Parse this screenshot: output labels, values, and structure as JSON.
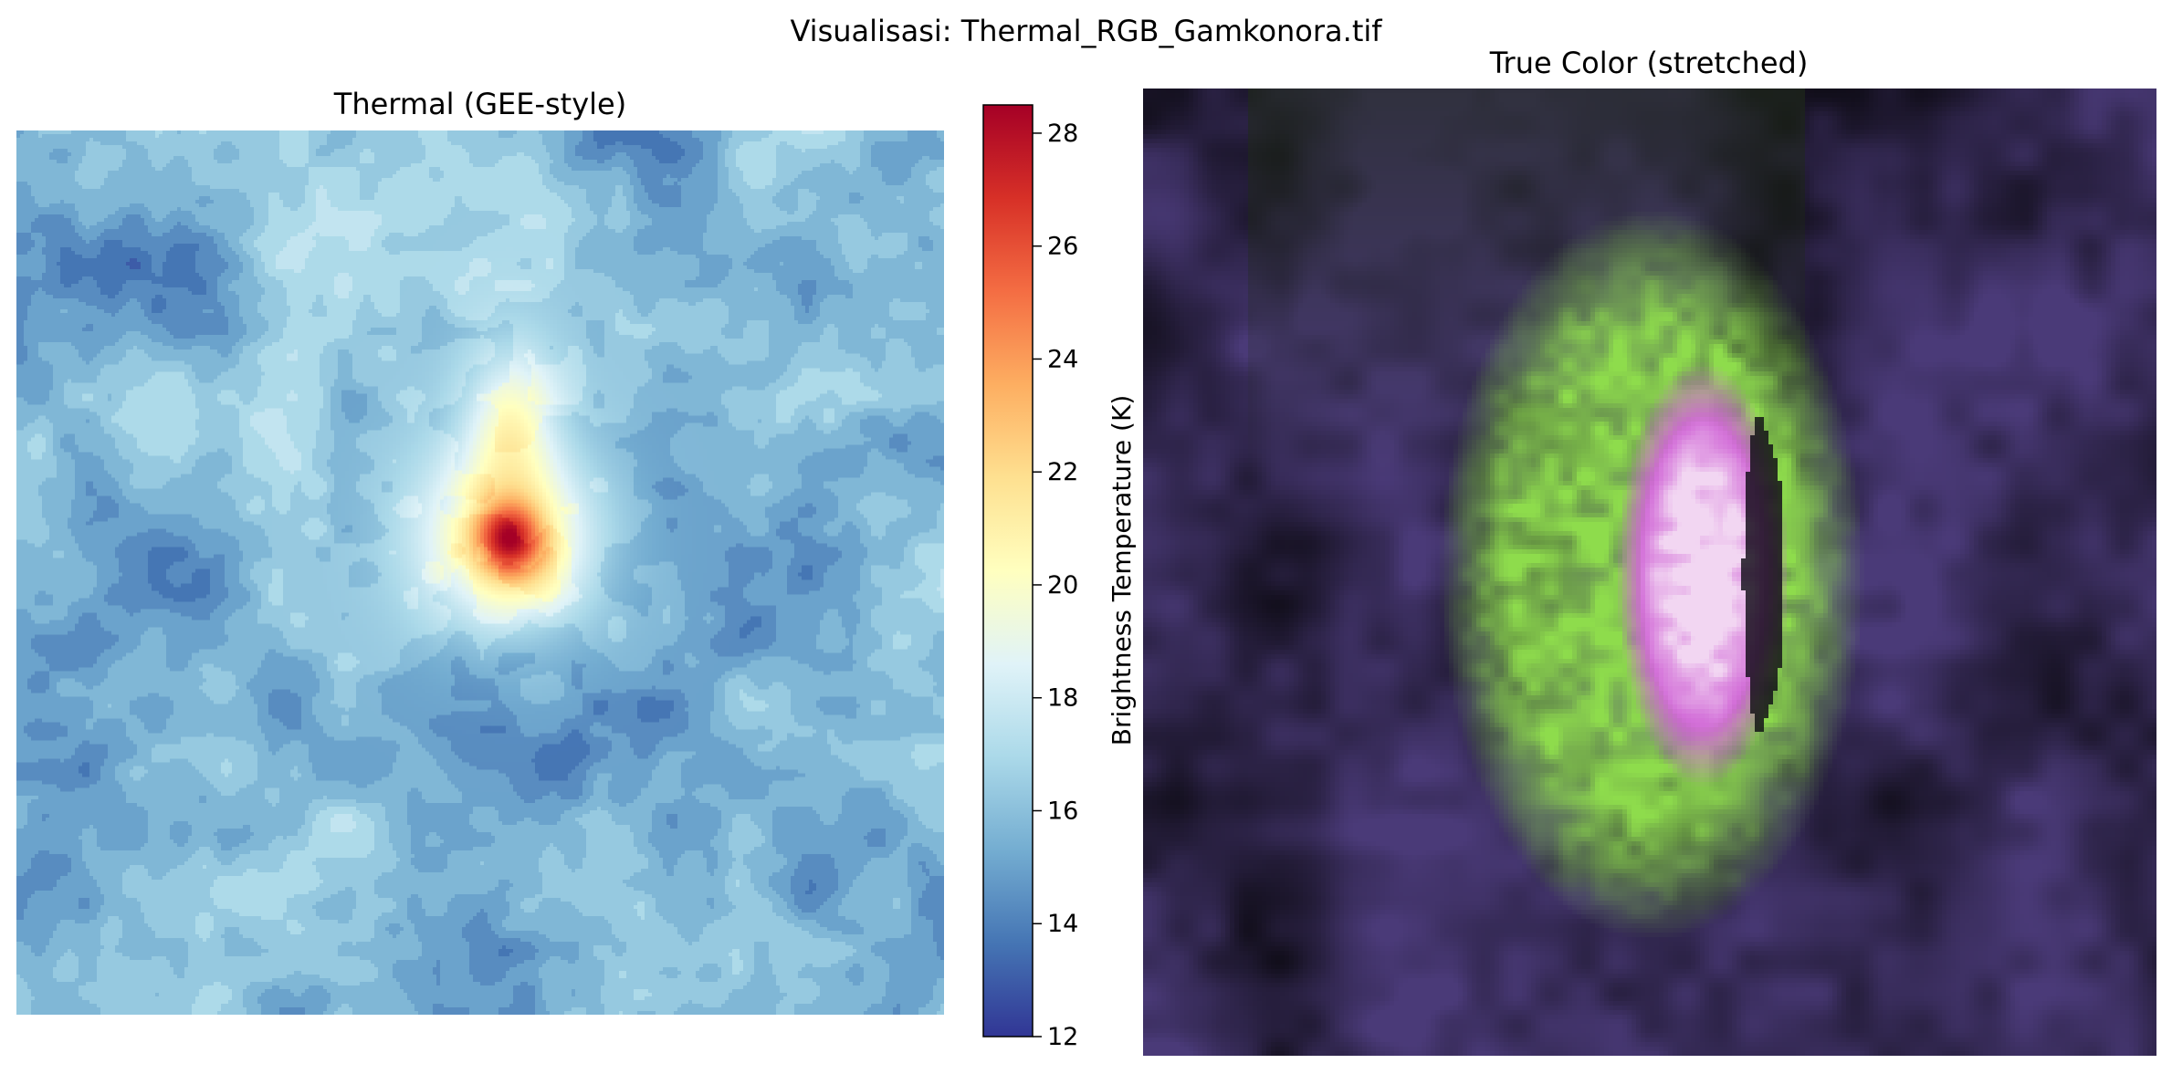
{
  "figure": {
    "suptitle": "Visualisasi: Thermal_RGB_Gamkonora.tif"
  },
  "chart_data": [
    {
      "type": "heatmap",
      "title": "Thermal (GEE-style)",
      "colormap": "RdYlBu_r",
      "axes_visible": false,
      "colorbar": {
        "label": "Brightness Temperature (K)",
        "min": 12,
        "max": 28.5,
        "ticks": [
          12,
          14,
          16,
          18,
          20,
          22,
          24,
          26,
          28
        ],
        "tick_labels": [
          "12",
          "14",
          "16",
          "18",
          "20",
          "22",
          "24",
          "26",
          "28"
        ],
        "colors": [
          "#313695",
          "#4575b4",
          "#74add1",
          "#abd9e9",
          "#e0f3f8",
          "#ffffbf",
          "#fee090",
          "#fdae61",
          "#f46d43",
          "#d73027",
          "#a50026"
        ]
      },
      "hotspot_max": 28.3,
      "background_range": [
        13,
        19
      ]
    },
    {
      "type": "image",
      "title": "True Color (stretched)",
      "axes_visible": false,
      "dominant_colors": {
        "vegetation": "#1f2a18",
        "volcanic_flank": "#8edc4c",
        "crater_white": "#f2d6f2",
        "crater_magenta": "#d066d6",
        "surrounding_purple": "#4a3a78",
        "dark": "#0c0a12"
      }
    }
  ]
}
